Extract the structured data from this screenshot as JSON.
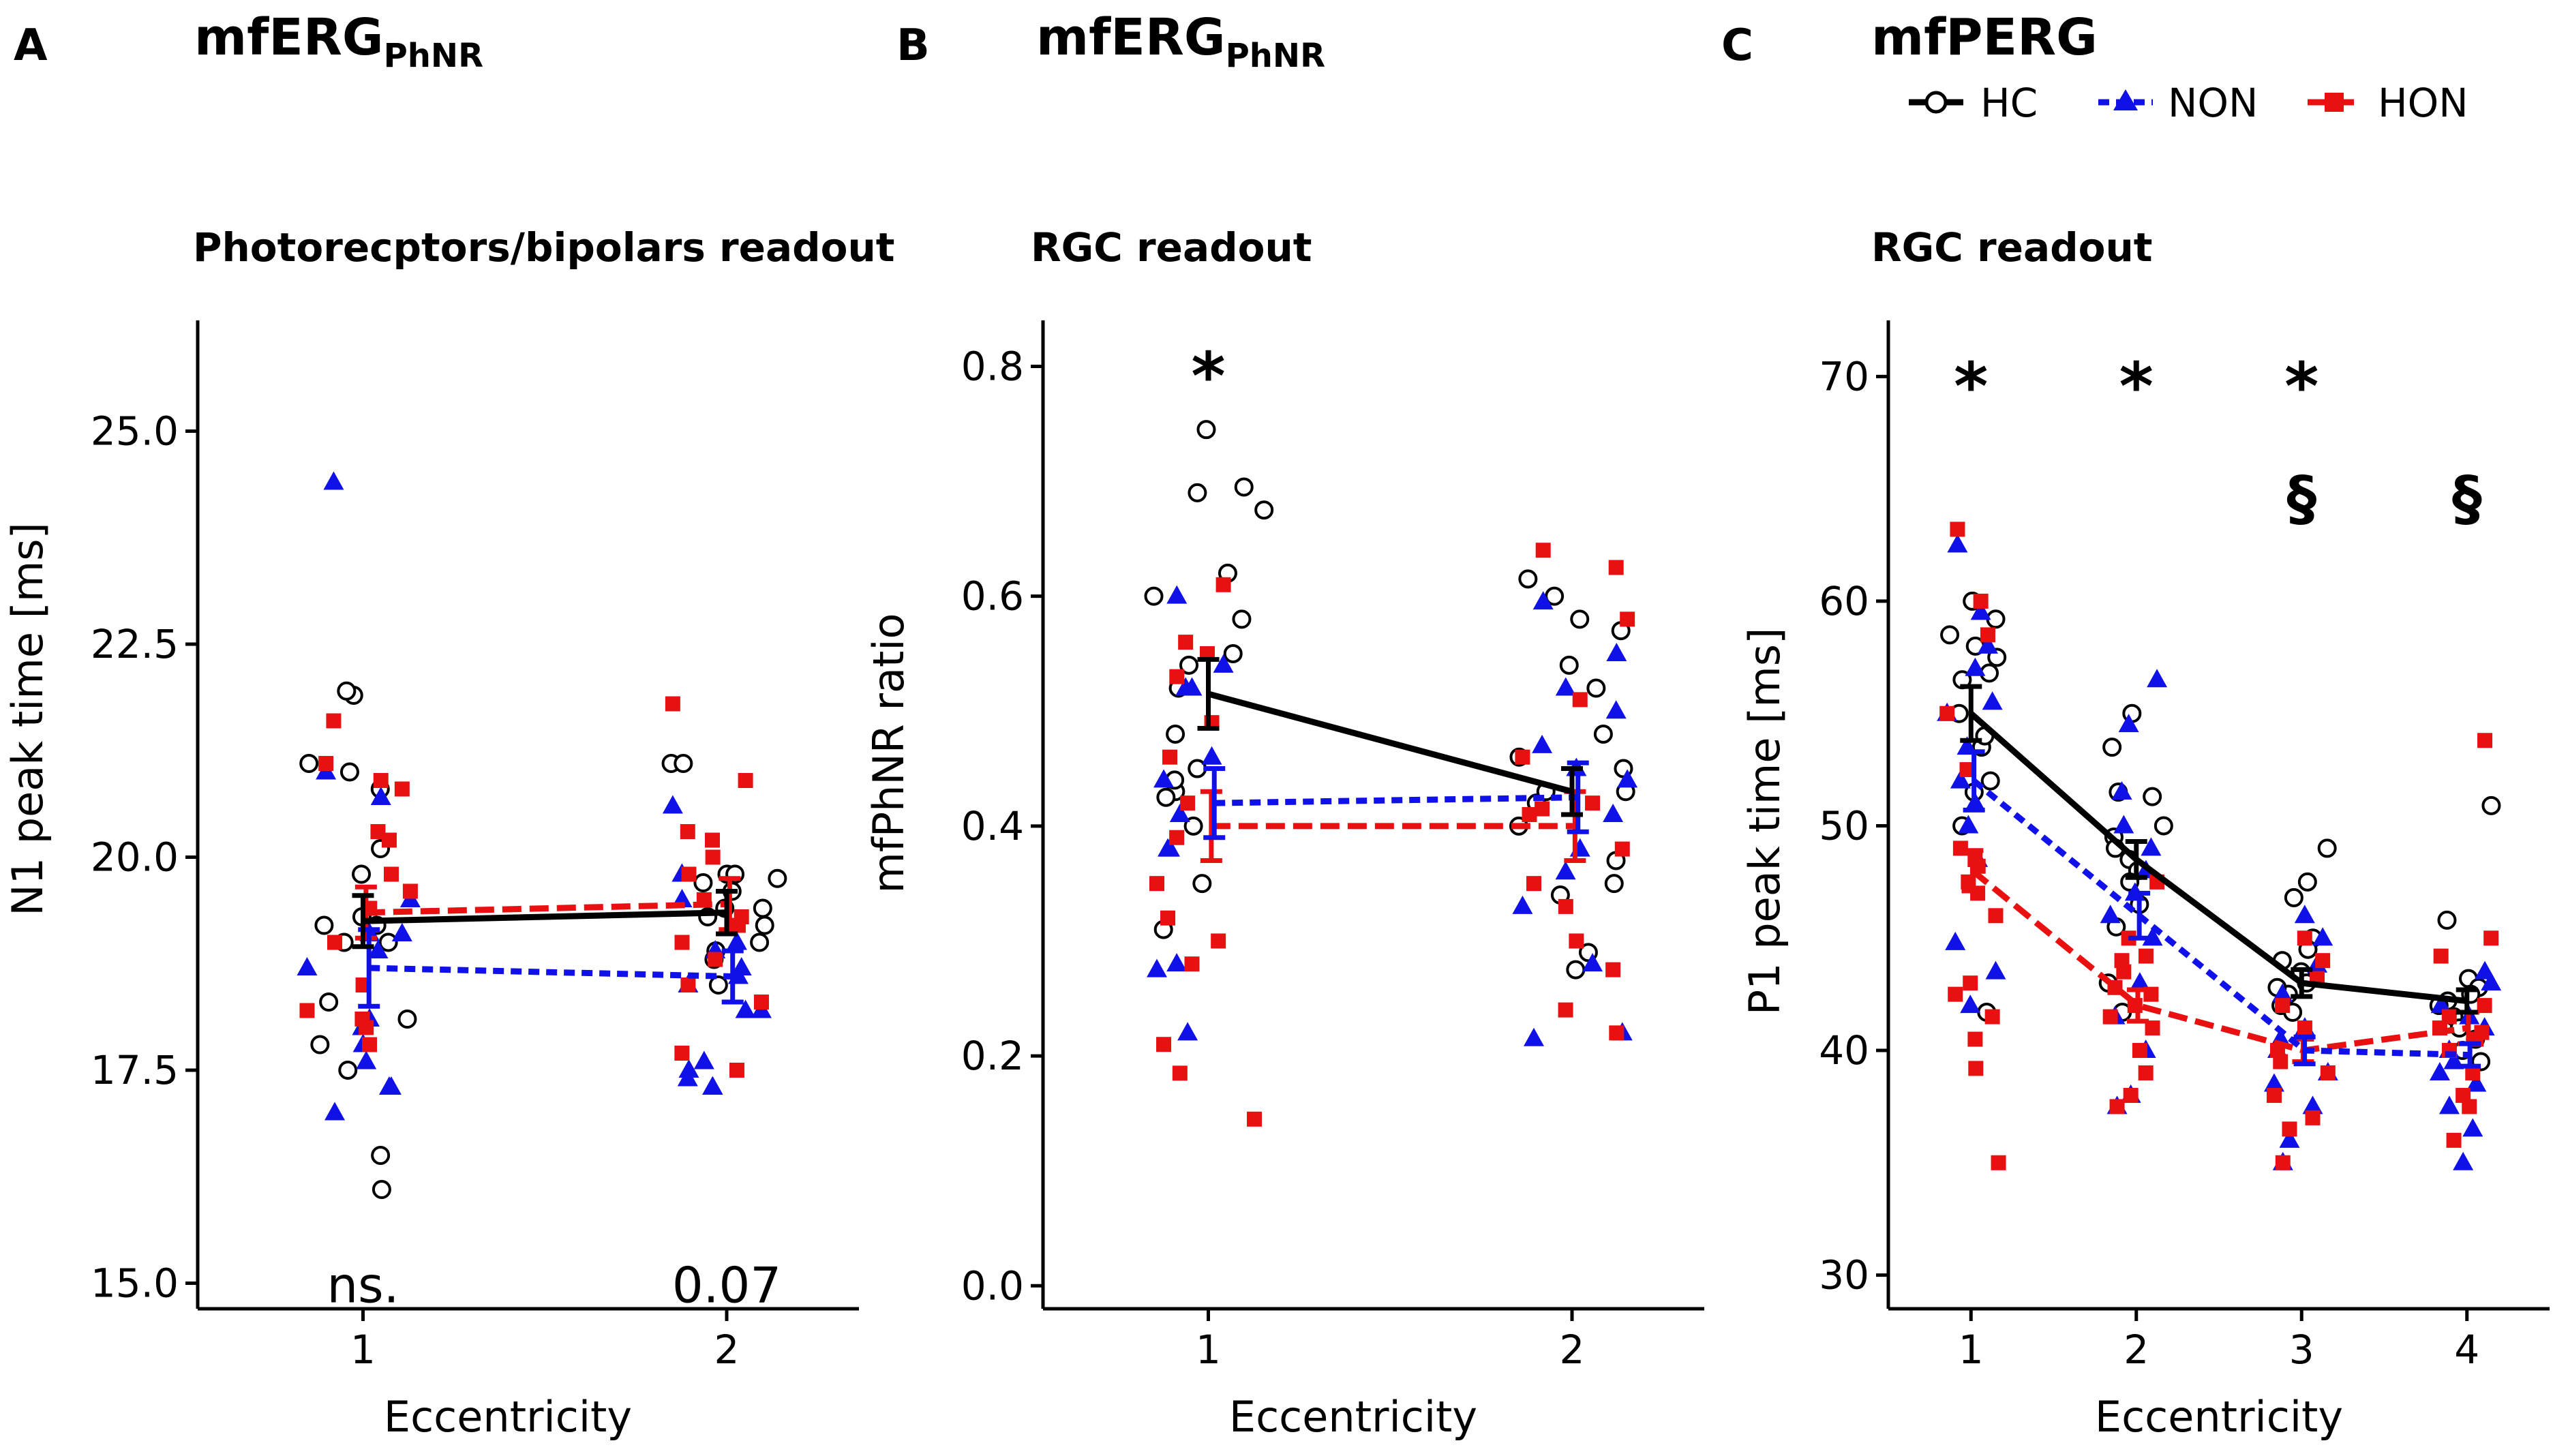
{
  "legend": {
    "position": "top-right",
    "entries": [
      {
        "key": "HC",
        "label": "HC",
        "color": "#000000",
        "line": "solid",
        "marker": "open-circle"
      },
      {
        "key": "NON",
        "label": "NON",
        "color": "#1010e8",
        "line": "dotted",
        "marker": "triangle"
      },
      {
        "key": "HON",
        "label": "HON",
        "color": "#e81010",
        "line": "dashed",
        "marker": "square"
      }
    ]
  },
  "chart_data": [
    {
      "type": "scatter",
      "panel_label": "A",
      "title_main": "mfERG",
      "title_sub": "PhNR",
      "subtitle": "Photorecptors/bipolars readout",
      "xlabel": "Eccentricity",
      "ylabel": "N1 peak time [ms]",
      "categories": [
        "1",
        "2"
      ],
      "ylim": [
        14.7,
        26.3
      ],
      "yticks": [
        15.0,
        17.5,
        20.0,
        22.5,
        25.0
      ],
      "ytick_labels": [
        "15.0",
        "17.5",
        "20.0",
        "22.5",
        "25.0"
      ],
      "annotations": [
        {
          "x": "1",
          "y": 15.0,
          "text": "ns."
        },
        {
          "x": "2",
          "y": 15.0,
          "text": "0.07"
        }
      ],
      "series": [
        {
          "key": "HC",
          "means": [
            19.25,
            19.35
          ],
          "errors": [
            0.3,
            0.25
          ],
          "points": [
            [
              19.3,
              20.8,
              19.2,
              21.9,
              21.1,
              20.1,
              19.2,
              21.0,
              19.8,
              18.3,
              18.1,
              17.5,
              16.5,
              17.8,
              19.0,
              16.1,
              21.95,
              19.0
            ],
            [
              19.3,
              21.1,
              21.1,
              19.8,
              19.7,
              19.8,
              19.4,
              19.4,
              18.9,
              18.8,
              18.5,
              19.6,
              19.2,
              19.75,
              19.0
            ]
          ]
        },
        {
          "key": "NON",
          "means": [
            18.7,
            18.6
          ],
          "errors": [
            0.45,
            0.3
          ],
          "points": [
            [
              24.4,
              21.0,
              19.1,
              18.9,
              17.3,
              17.0,
              17.8,
              17.6,
              18.1,
              20.7,
              19.5,
              18.7,
              18.0,
              17.3,
              19.1
            ],
            [
              20.6,
              18.2,
              17.4,
              17.3,
              17.3,
              17.6,
              18.7,
              19.5,
              18.9,
              18.5,
              18.2,
              19.8,
              19.0,
              17.5,
              18.6
            ]
          ]
        },
        {
          "key": "HON",
          "means": [
            19.35,
            19.45
          ],
          "errors": [
            0.3,
            0.3
          ],
          "points": [
            [
              21.6,
              21.1,
              20.8,
              20.3,
              19.8,
              19.0,
              18.5,
              18.0,
              17.8,
              20.9,
              19.6,
              18.2,
              18.1,
              20.2,
              19.4
            ],
            [
              21.8,
              20.9,
              20.3,
              20.2,
              20.0,
              19.5,
              19.3,
              19.0,
              18.8,
              18.5,
              18.3,
              17.7,
              17.5,
              19.8,
              19.2
            ]
          ]
        }
      ]
    },
    {
      "type": "scatter",
      "panel_label": "B",
      "title_main": "mfERG",
      "title_sub": "PhNR",
      "subtitle": "RGC readout",
      "xlabel": "Eccentricity",
      "ylabel": "mfPhNR ratio",
      "categories": [
        "1",
        "2"
      ],
      "ylim": [
        -0.02,
        0.84
      ],
      "yticks": [
        0.0,
        0.2,
        0.4,
        0.6,
        0.8
      ],
      "ytick_labels": [
        "0.0",
        "0.2",
        "0.4",
        "0.6",
        "0.8"
      ],
      "annotations": [
        {
          "x": "1",
          "y": 0.8,
          "text": "*"
        }
      ],
      "series": [
        {
          "key": "HC",
          "means": [
            0.515,
            0.43
          ],
          "errors": [
            0.03,
            0.02
          ],
          "points": [
            [
              0.675,
              0.695,
              0.69,
              0.745,
              0.62,
              0.6,
              0.55,
              0.54,
              0.52,
              0.48,
              0.45,
              0.43,
              0.4,
              0.35,
              0.31,
              0.425,
              0.58,
              0.44
            ],
            [
              0.615,
              0.6,
              0.58,
              0.57,
              0.54,
              0.52,
              0.48,
              0.46,
              0.45,
              0.43,
              0.42,
              0.4,
              0.37,
              0.35,
              0.34,
              0.29,
              0.275,
              0.43
            ]
          ]
        },
        {
          "key": "NON",
          "means": [
            0.42,
            0.425
          ],
          "errors": [
            0.03,
            0.03
          ],
          "points": [
            [
              0.54,
              0.52,
              0.6,
              0.46,
              0.38,
              0.22,
              0.28,
              0.275,
              0.38,
              0.52,
              0.44,
              0.41
            ],
            [
              0.595,
              0.5,
              0.44,
              0.38,
              0.33,
              0.28,
              0.22,
              0.215,
              0.52,
              0.45,
              0.41,
              0.36,
              0.55,
              0.47
            ]
          ]
        },
        {
          "key": "HON",
          "means": [
            0.4,
            0.4
          ],
          "errors": [
            0.03,
            0.03
          ],
          "points": [
            [
              0.61,
              0.56,
              0.53,
              0.49,
              0.46,
              0.42,
              0.39,
              0.35,
              0.32,
              0.28,
              0.21,
              0.185,
              0.145,
              0.55,
              0.3
            ],
            [
              0.64,
              0.625,
              0.58,
              0.51,
              0.46,
              0.42,
              0.38,
              0.35,
              0.33,
              0.3,
              0.275,
              0.24,
              0.22,
              0.415,
              0.41
            ]
          ]
        }
      ]
    },
    {
      "type": "scatter",
      "panel_label": "C",
      "title_main": "mfPERG",
      "title_sub": "",
      "subtitle": "RGC readout",
      "xlabel": "Eccentricity",
      "ylabel": "P1 peak time [ms]",
      "categories": [
        "1",
        "2",
        "3",
        "4"
      ],
      "ylim": [
        28.5,
        72.5
      ],
      "yticks": [
        30,
        40,
        50,
        60,
        70
      ],
      "ytick_labels": [
        "30",
        "40",
        "50",
        "60",
        "70"
      ],
      "annotations": [
        {
          "x": "1",
          "y": 70,
          "text": "*"
        },
        {
          "x": "2",
          "y": 70,
          "text": "*"
        },
        {
          "x": "3",
          "y": 70,
          "text": "*"
        },
        {
          "x": "3",
          "y": 64.5,
          "text": "§"
        },
        {
          "x": "4",
          "y": 64.5,
          "text": "§"
        }
      ],
      "series": [
        {
          "key": "HC",
          "means": [
            55.0,
            48.5,
            43.0,
            42.2
          ],
          "errors": [
            1.2,
            0.8,
            0.6,
            0.5
          ],
          "points": [
            [
              59.2,
              58.5,
              57.5,
              56.5,
              55.0,
              53.5,
              52.0,
              51.5,
              50.0,
              41.7,
              56.8,
              60.0,
              54.0,
              58.0
            ],
            [
              55.0,
              53.5,
              51.5,
              50.0,
              49.5,
              49.0,
              48.5,
              48.0,
              47.5,
              46.5,
              45.5,
              43.0,
              41.7,
              51.3
            ],
            [
              49.0,
              47.5,
              46.8,
              45.0,
              44.0,
              43.5,
              43.0,
              42.5,
              42.0,
              41.7,
              42.8,
              44.5
            ],
            [
              50.9,
              45.8,
              43.2,
              42.8,
              42.5,
              42.2,
              41.5,
              41.0,
              40.5,
              39.5,
              40.0,
              42.0
            ]
          ]
        },
        {
          "key": "NON",
          "means": [
            52.0,
            46.0,
            40.0,
            39.8
          ],
          "errors": [
            1.3,
            1.0,
            0.6,
            0.5
          ],
          "points": [
            [
              62.5,
              59.5,
              58.0,
              55.0,
              53.5,
              52.0,
              51.0,
              50.0,
              48.5,
              43.5,
              42.0,
              44.8,
              55.5,
              57.0
            ],
            [
              56.5,
              54.5,
              51.5,
              50.0,
              49.0,
              47.0,
              46.0,
              45.0,
              43.0,
              40.0,
              38.0,
              37.5,
              41.5,
              48.0
            ],
            [
              46.0,
              45.0,
              43.8,
              42.5,
              41.0,
              40.0,
              39.0,
              38.5,
              37.5,
              36.0,
              35.0,
              40.5
            ],
            [
              43.5,
              43.0,
              42.0,
              41.0,
              40.0,
              39.0,
              38.5,
              37.5,
              36.5,
              35.0,
              41.5,
              39.5
            ]
          ]
        },
        {
          "key": "HON",
          "means": [
            48.0,
            42.0,
            40.0,
            41.0
          ],
          "errors": [
            0.9,
            0.7,
            0.5,
            0.7
          ],
          "points": [
            [
              63.2,
              60.0,
              58.5,
              55.0,
              52.5,
              49.0,
              48.5,
              47.5,
              47.0,
              46.0,
              43.0,
              42.5,
              41.5,
              40.5,
              39.2,
              35.0,
              48.2
            ],
            [
              47.5,
              45.0,
              44.0,
              43.5,
              42.5,
              42.0,
              41.5,
              41.0,
              40.0,
              39.0,
              38.0,
              37.5,
              42.8,
              44.2
            ],
            [
              45.0,
              44.0,
              43.2,
              42.0,
              41.0,
              40.0,
              39.0,
              38.0,
              37.0,
              36.5,
              35.0,
              39.5
            ],
            [
              53.8,
              45.0,
              44.2,
              42.0,
              41.5,
              41.0,
              40.5,
              40.0,
              39.0,
              38.0,
              37.5,
              36.0,
              40.8
            ]
          ]
        }
      ]
    }
  ]
}
